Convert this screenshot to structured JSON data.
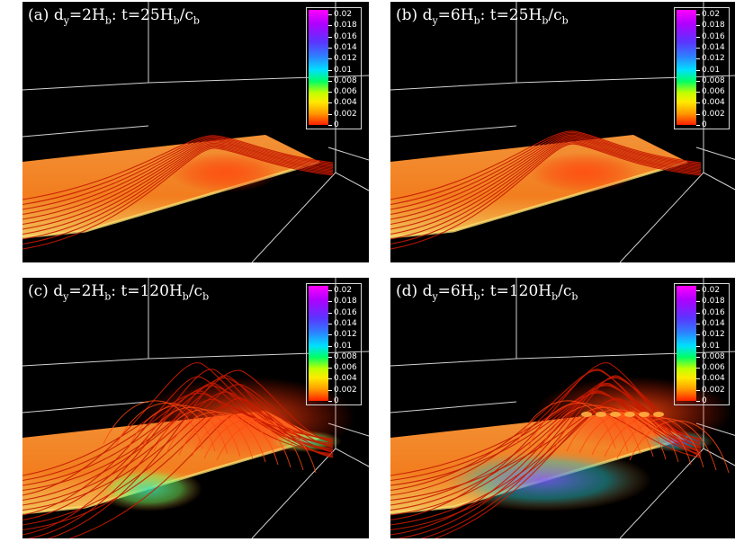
{
  "panels": [
    {
      "label": "(a)",
      "dy": "2",
      "t": "25"
    },
    {
      "label": "(b)",
      "dy": "6",
      "t": "25"
    },
    {
      "label": "(c)",
      "dy": "2",
      "t": "120"
    },
    {
      "label": "(d)",
      "dy": "6",
      "t": "120"
    }
  ],
  "title_parts": {
    "d": "d",
    "y_sub": "y",
    "eq": "=",
    "H": "H",
    "b_sub": "b",
    "colon_t": ": t=",
    "slash_c": "/c"
  },
  "colorbar": {
    "ticks": [
      "0.02",
      "0.018",
      "0.016",
      "0.014",
      "0.012",
      "0.01",
      "0.008",
      "0.006",
      "0.004",
      "0.002",
      "0"
    ]
  },
  "colors": {
    "sheet": "#ff8a2a",
    "field_line": "#c51a00",
    "frame": "#e8e8e8",
    "background": "#000000"
  }
}
